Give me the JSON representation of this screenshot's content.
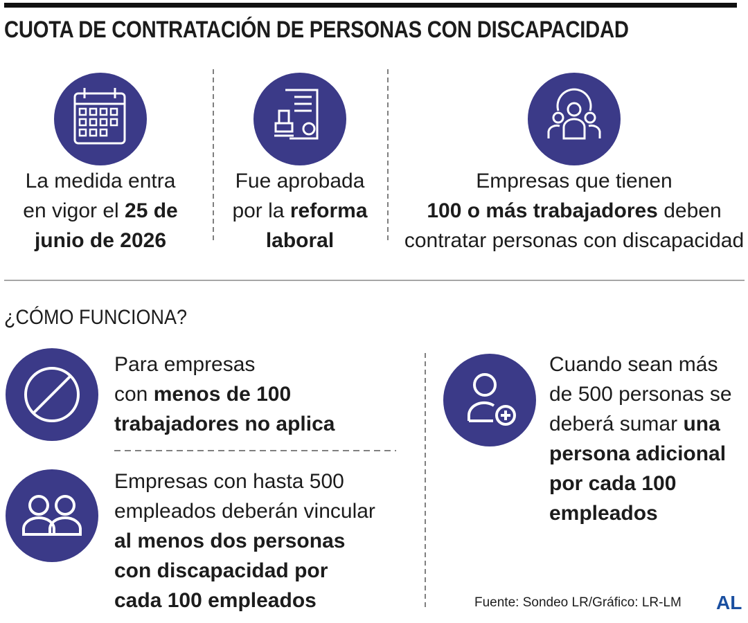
{
  "title": "CUOTA DE CONTRATACIÓN DE PERSONAS CON DISCAPACIDAD",
  "facts": [
    {
      "lines": [
        [
          {
            "text": "La medida entra",
            "bold": false
          }
        ],
        [
          {
            "text": "en vigor el ",
            "bold": false
          },
          {
            "text": "25 de",
            "bold": true
          }
        ],
        [
          {
            "text": "junio de 2026",
            "bold": true
          }
        ]
      ]
    },
    {
      "lines": [
        [
          {
            "text": "Fue aprobada",
            "bold": false
          }
        ],
        [
          {
            "text": "por la ",
            "bold": false
          },
          {
            "text": "reforma",
            "bold": true
          }
        ],
        [
          {
            "text": "laboral",
            "bold": true
          }
        ]
      ]
    },
    {
      "lines": [
        [
          {
            "text": "Empresas que tienen",
            "bold": false
          }
        ],
        [
          {
            "text": "100 o más trabajadores",
            "bold": true
          },
          {
            "text": " deben",
            "bold": false
          }
        ],
        [
          {
            "text": "contratar personas con discapacidad",
            "bold": false
          }
        ]
      ]
    }
  ],
  "section_title": "¿CÓMO FUNCIONA?",
  "rules": [
    {
      "lines": [
        [
          {
            "text": "Para empresas",
            "bold": false
          }
        ],
        [
          {
            "text": "con ",
            "bold": false
          },
          {
            "text": "menos de 100",
            "bold": true
          }
        ],
        [
          {
            "text": "trabajadores no aplica",
            "bold": true
          }
        ]
      ]
    },
    {
      "lines": [
        [
          {
            "text": "Empresas con hasta 500",
            "bold": false
          }
        ],
        [
          {
            "text": "empleados deberán vincular",
            "bold": false
          }
        ],
        [
          {
            "text": "al menos dos personas",
            "bold": true
          }
        ],
        [
          {
            "text": "con discapacidad por",
            "bold": true
          }
        ],
        [
          {
            "text": "cada 100 empleados",
            "bold": true
          }
        ]
      ]
    },
    {
      "lines": [
        [
          {
            "text": "Cuando sean más",
            "bold": false
          }
        ],
        [
          {
            "text": "de 500 personas se",
            "bold": false
          }
        ],
        [
          {
            "text": "deberá sumar ",
            "bold": false
          },
          {
            "text": "una",
            "bold": true
          }
        ],
        [
          {
            "text": "persona adicional",
            "bold": true
          }
        ],
        [
          {
            "text": "por cada 100",
            "bold": true
          }
        ],
        [
          {
            "text": "empleados",
            "bold": true
          }
        ]
      ]
    }
  ],
  "source": "Fuente: Sondeo LR/Gráfico: LR-LM",
  "logo": "AL"
}
